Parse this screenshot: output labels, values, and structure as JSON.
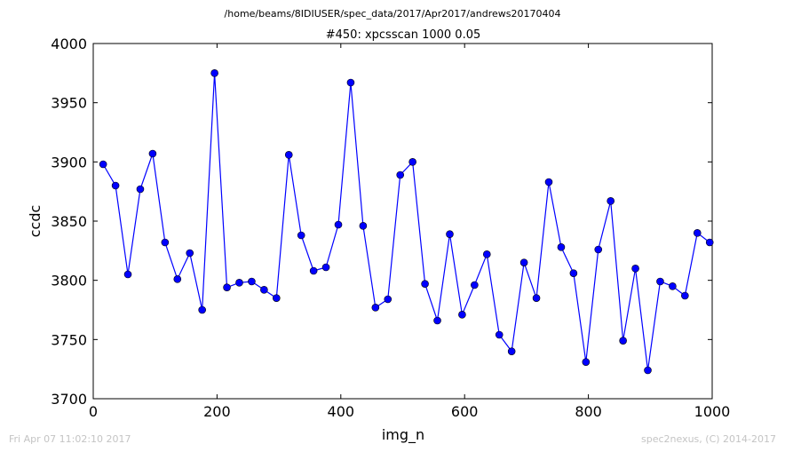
{
  "figure": {
    "suptitle": "/home/beams/8IDIUSER/spec_data/2017/Apr2017/andrews20170404",
    "footer_left": "Fri Apr 07 11:02:10 2017",
    "footer_right": "spec2nexus, (C) 2014-2017"
  },
  "chart_data": {
    "type": "line",
    "title": "#450: xpcsscan 1000 0.05",
    "xlabel": "img_n",
    "ylabel": "ccdc",
    "xlim": [
      0,
      1000
    ],
    "ylim": [
      3700,
      4000
    ],
    "xticks": [
      0,
      200,
      400,
      600,
      800,
      1000
    ],
    "yticks": [
      3700,
      3750,
      3800,
      3850,
      3900,
      3950,
      4000
    ],
    "grid": false,
    "markers": true,
    "color": "#0000ff",
    "series": [
      {
        "x": [
          16,
          36,
          56,
          76,
          96,
          116,
          136,
          156,
          176,
          196,
          216,
          236,
          256,
          276,
          296,
          316,
          336,
          356,
          376,
          396,
          416,
          436,
          456,
          476,
          496,
          516,
          536,
          556,
          576,
          596,
          616,
          636,
          656,
          676,
          696,
          716,
          736,
          756,
          776,
          796,
          816,
          836,
          856,
          876,
          896,
          916,
          936,
          956,
          976,
          996
        ],
        "y": [
          3898,
          3880,
          3805,
          3877,
          3907,
          3832,
          3801,
          3823,
          3775,
          3975,
          3794,
          3798,
          3799,
          3792,
          3785,
          3906,
          3838,
          3808,
          3811,
          3847,
          3967,
          3846,
          3777,
          3784,
          3889,
          3900,
          3797,
          3766,
          3839,
          3771,
          3796,
          3822,
          3754,
          3740,
          3815,
          3785,
          3883,
          3828,
          3806,
          3731,
          3826,
          3867,
          3749,
          3810,
          3724,
          3799,
          3795,
          3787,
          3840,
          3832
        ]
      }
    ]
  }
}
